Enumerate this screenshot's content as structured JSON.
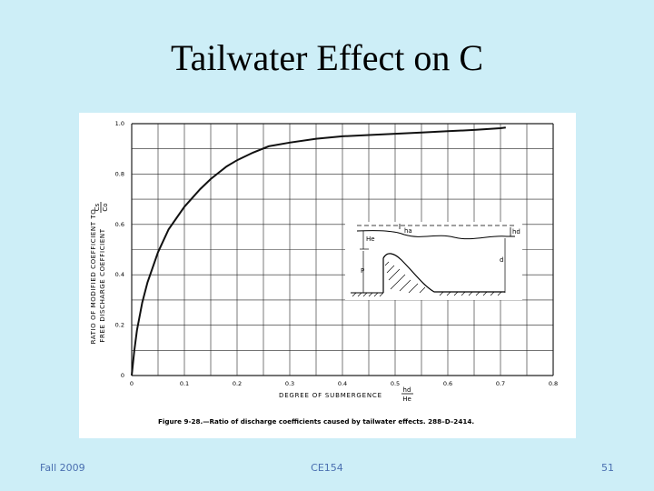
{
  "slide": {
    "title": "Tailwater Effect on C",
    "footer_left": "Fall 2009",
    "footer_center": "CE154",
    "footer_right": "51"
  },
  "chart_data": {
    "type": "line",
    "title": "",
    "xlabel": "DEGREE OF SUBMERGENCE",
    "xlabel_fraction": {
      "num": "hd",
      "den": "He"
    },
    "ylabel_line1": "RATIO OF MODIFIED COEFFICIENT TO",
    "ylabel_line2": "FREE DISCHARGE COEFFICIENT",
    "ylabel_fraction": {
      "num": "Cs",
      "den": "Co"
    },
    "xlim": [
      0,
      0.8
    ],
    "ylim": [
      0,
      1.0
    ],
    "grid": true,
    "x_ticks": [
      0,
      0.1,
      0.2,
      0.3,
      0.4,
      0.5,
      0.6,
      0.7,
      0.8
    ],
    "x_tick_labels": [
      "0",
      "0.1",
      "0.2",
      "0.3",
      "0.4",
      "0.5",
      "0.6",
      "0.7",
      "0.8"
    ],
    "y_ticks": [
      0,
      0.2,
      0.4,
      0.6,
      0.8,
      1.0
    ],
    "y_tick_labels": [
      "0",
      "0.2",
      "0.4",
      "0.6",
      "0.8",
      "1.0"
    ],
    "series": [
      {
        "x": [
          0,
          0.005,
          0.01,
          0.02,
          0.03,
          0.05,
          0.07,
          0.1,
          0.13,
          0.15,
          0.18,
          0.2,
          0.23,
          0.26,
          0.3,
          0.35,
          0.4,
          0.45,
          0.5,
          0.55,
          0.6,
          0.65,
          0.7,
          0.71
        ],
        "y": [
          0,
          0.1,
          0.18,
          0.29,
          0.37,
          0.49,
          0.58,
          0.67,
          0.74,
          0.78,
          0.83,
          0.855,
          0.885,
          0.91,
          0.925,
          0.94,
          0.95,
          0.955,
          0.96,
          0.965,
          0.97,
          0.975,
          0.982,
          0.985
        ]
      }
    ],
    "caption": "Figure 9-28.—Ratio of discharge coefficients caused by tailwater effects.   288–D–2414.",
    "inset": {
      "labels": {
        "ha": "ha",
        "hd": "hd",
        "He": "He",
        "P": "P",
        "d": "d"
      }
    }
  }
}
